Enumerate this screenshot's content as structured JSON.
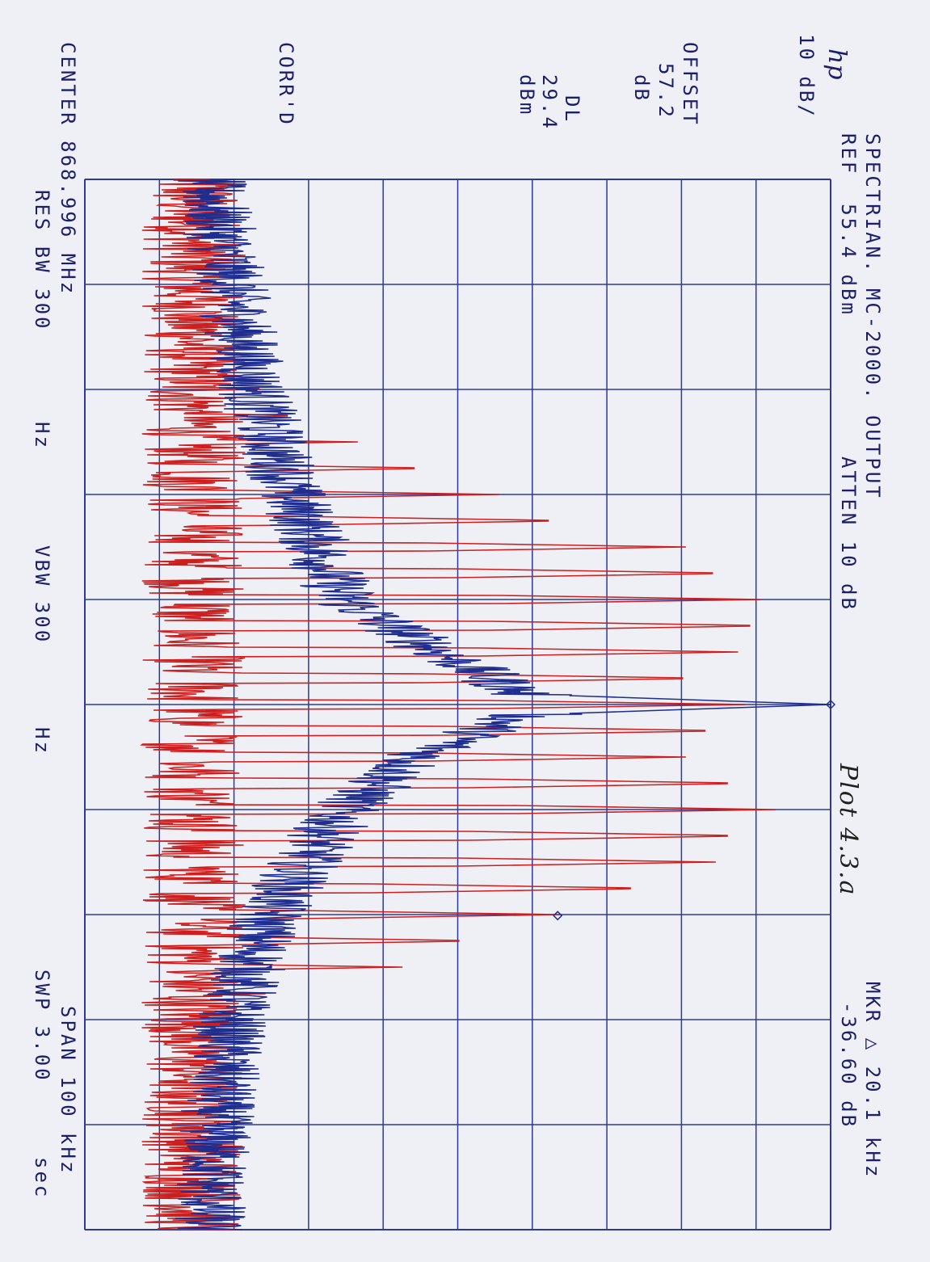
{
  "header": {
    "scale": "10 dB/",
    "title": "SPECTRIAN. MC-2000. OUTPUT",
    "ref": "REF  55.4 dBm",
    "atten": "ATTEN 10 dB",
    "mkr": "MKR △ 20.1 kHz",
    "mkr_value": "-36.60 dB",
    "hp_logo": "hp",
    "plot_note": "Plot 4.3.a"
  },
  "side": {
    "offset_label": "OFFSET",
    "offset_value": "57.2",
    "offset_unit": "dB",
    "dl_label": "DL",
    "dl_value": "29.4",
    "dl_unit": "dBm",
    "corr": "CORR'D"
  },
  "footer": {
    "center": "CENTER 868.996 MHz",
    "span": "SPAN 100 kHz",
    "res_bw": "RES BW 300",
    "res_bw_unit": "Hz",
    "vbw": "VBW 300",
    "vbw_unit": "Hz",
    "swp": "SWP 3.00",
    "swp_unit": "sec"
  },
  "colors": {
    "grid": "#2b3a9c",
    "trace_red": "#cc1f1f",
    "trace_blue": "#1f2d8f",
    "paper": "#eef0f5"
  },
  "chart_data": {
    "type": "line",
    "title": "SPECTRIAN. MC-2000. OUTPUT",
    "x_unit": "kHz offset from center 868.996 MHz",
    "y_unit": "dBm",
    "xlim": [
      -50,
      50
    ],
    "ylim": [
      -44.6,
      55.4
    ],
    "ref_level_dbm": 55.4,
    "scale_db_per_div": 10,
    "grid": true,
    "markers": [
      {
        "x": 0,
        "y": 55.4
      },
      {
        "x": 20.1,
        "y": 18.8
      }
    ],
    "series": [
      {
        "color": "red",
        "tone_spacing_khz": 2.5,
        "noise_floor_dbm": -30,
        "tones": [
          {
            "x": -30.0,
            "y": -21
          },
          {
            "x": -27.5,
            "y": -14
          },
          {
            "x": -25.0,
            "y": -8
          },
          {
            "x": -22.5,
            "y": 3
          },
          {
            "x": -20.0,
            "y": 11
          },
          {
            "x": -17.5,
            "y": 21
          },
          {
            "x": -15.0,
            "y": 36
          },
          {
            "x": -12.5,
            "y": 43
          },
          {
            "x": -10.0,
            "y": 46
          },
          {
            "x": -7.5,
            "y": 48
          },
          {
            "x": -5.0,
            "y": 43
          },
          {
            "x": -2.5,
            "y": 39
          },
          {
            "x": 0.0,
            "y": 44
          },
          {
            "x": 2.5,
            "y": 42
          },
          {
            "x": 5.0,
            "y": 36
          },
          {
            "x": 7.5,
            "y": 45
          },
          {
            "x": 10.0,
            "y": 48
          },
          {
            "x": 12.5,
            "y": 45
          },
          {
            "x": 15.0,
            "y": 40
          },
          {
            "x": 17.5,
            "y": 32
          },
          {
            "x": 20.0,
            "y": 19
          },
          {
            "x": 22.5,
            "y": 9
          },
          {
            "x": 25.0,
            "y": -2
          },
          {
            "x": 27.5,
            "y": -17
          }
        ]
      },
      {
        "color": "blue",
        "points": [
          {
            "x": -50,
            "y": -28
          },
          {
            "x": -40,
            "y": -25
          },
          {
            "x": -30,
            "y": -22
          },
          {
            "x": -20,
            "y": -17
          },
          {
            "x": -10,
            "y": -10
          },
          {
            "x": -5,
            "y": 3
          },
          {
            "x": -1,
            "y": 14
          },
          {
            "x": 0,
            "y": 55.4
          },
          {
            "x": 1,
            "y": 14
          },
          {
            "x": 5,
            "y": 0
          },
          {
            "x": 10,
            "y": -10
          },
          {
            "x": 20,
            "y": -20
          },
          {
            "x": 30,
            "y": -25
          },
          {
            "x": 40,
            "y": -27
          },
          {
            "x": 50,
            "y": -28
          }
        ]
      }
    ]
  }
}
